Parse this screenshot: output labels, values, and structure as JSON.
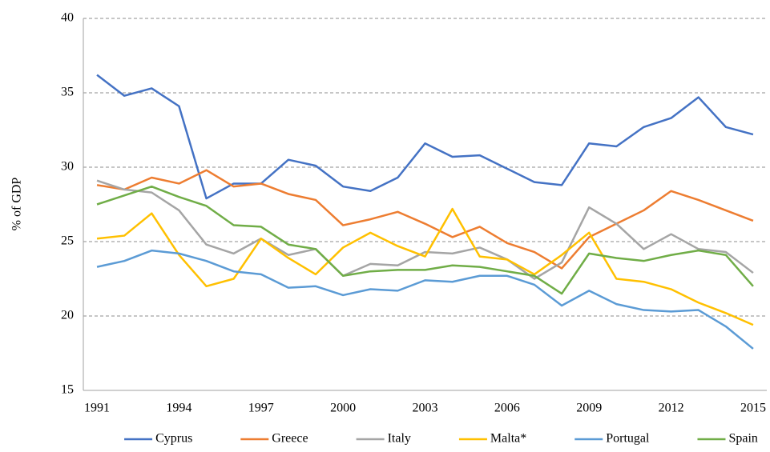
{
  "chart_data": {
    "type": "line",
    "y_label": "% of GDP",
    "x": [
      1991,
      1992,
      1993,
      1994,
      1995,
      1996,
      1997,
      1998,
      1999,
      2000,
      2001,
      2002,
      2003,
      2004,
      2005,
      2006,
      2007,
      2008,
      2009,
      2010,
      2011,
      2012,
      2013,
      2014,
      2015
    ],
    "xlim": [
      1990.5,
      2015.5
    ],
    "xticks": [
      1991,
      1994,
      1997,
      2000,
      2003,
      2006,
      2009,
      2012,
      2015
    ],
    "ylim": [
      15,
      40
    ],
    "yticks": [
      15,
      20,
      25,
      30,
      35,
      40
    ],
    "grid": true,
    "legend": "bottom",
    "series": [
      {
        "name": "Cyprus",
        "color": "#4472c4",
        "values": [
          36.2,
          34.8,
          35.3,
          34.1,
          27.9,
          28.9,
          28.9,
          30.5,
          30.1,
          28.7,
          28.4,
          29.3,
          31.6,
          30.7,
          30.8,
          29.9,
          29.0,
          28.8,
          31.6,
          31.4,
          32.7,
          33.3,
          34.7,
          32.7,
          32.2
        ]
      },
      {
        "name": "Greece",
        "color": "#ed7d31",
        "values": [
          28.8,
          28.5,
          29.3,
          28.9,
          29.8,
          28.7,
          28.9,
          28.2,
          27.8,
          26.1,
          26.5,
          27.0,
          26.2,
          25.3,
          26.0,
          24.9,
          24.3,
          23.2,
          25.3,
          26.2,
          27.1,
          28.4,
          27.8,
          27.1,
          26.4
        ]
      },
      {
        "name": "Italy",
        "color": "#a5a5a5",
        "values": [
          29.1,
          28.5,
          28.3,
          27.1,
          24.8,
          24.2,
          25.2,
          24.1,
          24.5,
          22.7,
          23.5,
          23.4,
          24.3,
          24.2,
          24.6,
          23.8,
          22.5,
          23.6,
          27.3,
          26.2,
          24.5,
          25.5,
          24.5,
          24.3,
          22.9
        ]
      },
      {
        "name": "Malta*",
        "color": "#ffc000",
        "values": [
          25.2,
          25.4,
          26.9,
          24.1,
          22.0,
          22.5,
          25.2,
          23.9,
          22.8,
          24.6,
          25.6,
          24.7,
          24.0,
          27.2,
          24.0,
          23.8,
          22.8,
          24.1,
          25.6,
          22.5,
          22.3,
          21.8,
          20.9,
          20.2,
          19.4
        ]
      },
      {
        "name": "Portugal",
        "color": "#5b9bd5",
        "values": [
          23.3,
          23.7,
          24.4,
          24.2,
          23.7,
          23.0,
          22.8,
          21.9,
          22.0,
          21.4,
          21.8,
          21.7,
          22.4,
          22.3,
          22.7,
          22.7,
          22.1,
          20.7,
          21.7,
          20.8,
          20.4,
          20.3,
          20.4,
          19.3,
          17.8
        ]
      },
      {
        "name": "Spain",
        "color": "#70ad47",
        "values": [
          27.5,
          28.1,
          28.7,
          28.0,
          27.4,
          26.1,
          26.0,
          24.8,
          24.5,
          22.7,
          23.0,
          23.1,
          23.1,
          23.4,
          23.3,
          23.0,
          22.7,
          21.5,
          24.2,
          23.9,
          23.7,
          24.1,
          24.4,
          24.1,
          22.0
        ]
      }
    ]
  }
}
